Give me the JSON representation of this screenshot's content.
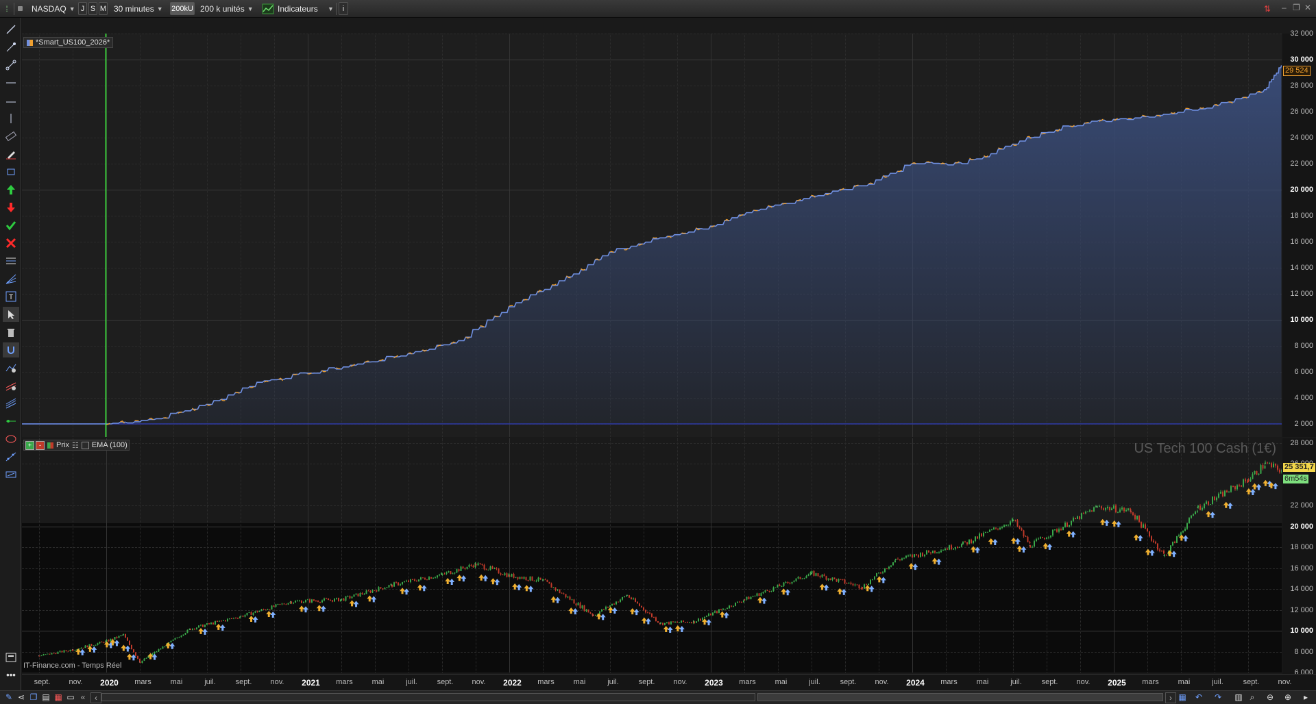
{
  "toolbar": {
    "market": "NASDAQ",
    "timeframes": [
      "J",
      "S",
      "M"
    ],
    "interval": "30 minutes",
    "units_button": "200kU",
    "units_select": "200 k unités",
    "indicators": "Indicateurs",
    "info_icon": "info-icon"
  },
  "colors": {
    "equity_line": "#6f8fe0",
    "equity_flat": "#f0a030",
    "equity_fill": "#3a4d7a",
    "baseline": "#2e3aa8",
    "start_marker": "#3dff3d",
    "candle_up": "#3aa84a",
    "candle_down": "#c03a2a",
    "price_tag": "#f2d64a",
    "timer_tag": "#7ee07e"
  },
  "top_panel": {
    "legend": "*Smart_US100_2026*",
    "y_labels": [
      "32 000",
      "30 000",
      "28 000",
      "26 000",
      "24 000",
      "22 000",
      "20 000",
      "18 000",
      "16 000",
      "14 000",
      "12 000",
      "10 000",
      "8 000",
      "6 000",
      "4 000",
      "2 000"
    ],
    "last_value_tag": "29 524"
  },
  "bottom_panel": {
    "legend_price": "Prix",
    "legend_ema": "EMA (100)",
    "watermark": "US Tech 100 Cash (1€)",
    "source": "IT-Finance.com - Temps Réel",
    "y_labels": [
      "28 000",
      "26 000",
      "22 000",
      "20 000",
      "18 000",
      "16 000",
      "14 000",
      "12 000",
      "10 000",
      "8 000",
      "6 000"
    ],
    "price_tag": "25 351,7",
    "timer_tag": "6m54s"
  },
  "x_axis": {
    "labels": [
      "sept.",
      "nov.",
      "2020",
      "mars",
      "mai",
      "juil.",
      "sept.",
      "nov.",
      "2021",
      "mars",
      "mai",
      "juil.",
      "sept.",
      "nov.",
      "2022",
      "mars",
      "mai",
      "juil.",
      "sept.",
      "nov.",
      "2023",
      "mars",
      "mai",
      "juil.",
      "sept.",
      "nov.",
      "2024",
      "mars",
      "mai",
      "juil.",
      "sept.",
      "nov.",
      "2025",
      "mars",
      "mai",
      "juil.",
      "sept.",
      "nov."
    ]
  },
  "chart_data": [
    {
      "type": "area",
      "title": "*Smart_US100_2026*",
      "xlabel": "",
      "ylabel": "",
      "ylim": [
        1000,
        32000
      ],
      "x": [
        "2020-01",
        "2020-04",
        "2020-07",
        "2020-10",
        "2021-01",
        "2021-04",
        "2021-07",
        "2021-10",
        "2022-01",
        "2022-04",
        "2022-07",
        "2022-10",
        "2023-01",
        "2023-04",
        "2023-07",
        "2023-10",
        "2024-01",
        "2024-04",
        "2024-07",
        "2024-10",
        "2025-01",
        "2025-04",
        "2025-07",
        "2025-10",
        "2025-11"
      ],
      "series": [
        {
          "values": [
            2000,
            2400,
            3500,
            5200,
            5900,
            6600,
            7400,
            8400,
            11000,
            13000,
            15200,
            16300,
            17200,
            18500,
            19500,
            20300,
            22000,
            22000,
            23500,
            24900,
            25400,
            25800,
            26500,
            27700,
            29524
          ]
        }
      ],
      "grid": true
    },
    {
      "type": "line",
      "title": "US Tech 100 Cash (1€)",
      "xlabel": "",
      "ylabel": "",
      "ylim": [
        6000,
        28000
      ],
      "x": [
        "2019-09",
        "2019-11",
        "2020-01",
        "2020-02",
        "2020-03",
        "2020-06",
        "2020-09",
        "2020-12",
        "2021-03",
        "2021-06",
        "2021-09",
        "2021-11",
        "2022-01",
        "2022-03",
        "2022-06",
        "2022-08",
        "2022-10",
        "2022-12",
        "2023-03",
        "2023-07",
        "2023-10",
        "2023-12",
        "2024-04",
        "2024-07",
        "2024-08",
        "2024-12",
        "2025-02",
        "2025-04",
        "2025-06",
        "2025-09",
        "2025-10",
        "2025-11"
      ],
      "series": [
        {
          "values": [
            7600,
            8200,
            9000,
            9600,
            7000,
            10200,
            11400,
            12800,
            13000,
            14400,
            15400,
            16400,
            15300,
            14800,
            11500,
            13400,
            10700,
            10900,
            13000,
            15500,
            14200,
            16800,
            18300,
            20600,
            18200,
            21900,
            21500,
            17200,
            21800,
            24500,
            26000,
            25352
          ]
        }
      ],
      "grid": true
    }
  ]
}
